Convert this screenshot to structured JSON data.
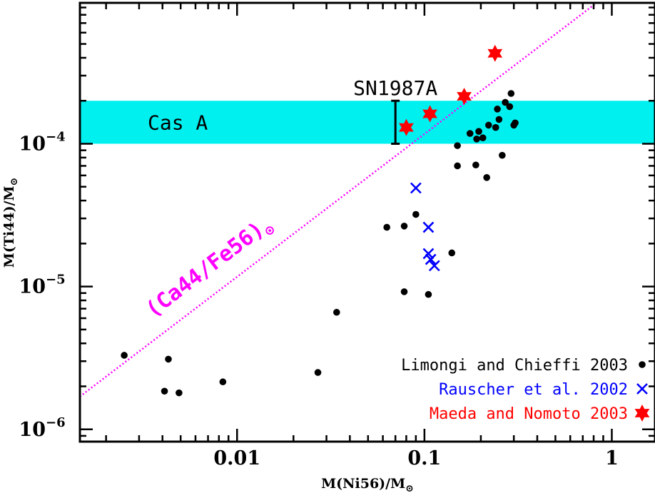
{
  "chart_data": {
    "type": "scatter",
    "title": "",
    "xlabel": "M(Ni56)/M",
    "ylabel": "M(Ti44)/M",
    "unit_symbol": "⊙",
    "xscale": "log",
    "yscale": "log",
    "xlim": [
      0.00145,
      1.7
    ],
    "ylim": [
      8.2e-07,
      0.00097
    ],
    "x_ticks": [
      {
        "value": 0.01,
        "label": "0.01"
      },
      {
        "value": 0.1,
        "label": "0.1"
      },
      {
        "value": 1,
        "label": "1"
      }
    ],
    "y_ticks": [
      {
        "value": 1e-06,
        "base": "10",
        "exp": "−6"
      },
      {
        "value": 1e-05,
        "base": "10",
        "exp": "−5"
      },
      {
        "value": 0.0001,
        "base": "10",
        "exp": "−4"
      }
    ],
    "band": {
      "label": "Cas A",
      "y_min": 0.0001,
      "y_max": 0.0002,
      "color": "#00f0f0"
    },
    "errorbar": {
      "label": "SN1987A",
      "x": 0.07,
      "y_min": 0.0001,
      "y_max": 0.0002
    },
    "solar_line": {
      "label": "(Ca44/Fe56)",
      "slope": 1,
      "intercept_y_at_x1": 0.00117,
      "color": "#ff00ff"
    },
    "legend_position": "bottom-right",
    "series": [
      {
        "name": "Limongi and Chieffi 2003",
        "marker": "circle",
        "color": "#000000",
        "points": [
          [
            0.0025,
            3.3e-06
          ],
          [
            0.0041,
            1.85e-06
          ],
          [
            0.0043,
            3.1e-06
          ],
          [
            0.0049,
            1.8e-06
          ],
          [
            0.0084,
            2.15e-06
          ],
          [
            0.027,
            2.5e-06
          ],
          [
            0.034,
            6.6e-06
          ],
          [
            0.063,
            2.6e-05
          ],
          [
            0.078,
            2.65e-05
          ],
          [
            0.078,
            9.2e-06
          ],
          [
            0.09,
            3.2e-05
          ],
          [
            0.105,
            8.8e-06
          ],
          [
            0.14,
            1.72e-05
          ],
          [
            0.15,
            9.7e-05
          ],
          [
            0.15,
            7e-05
          ],
          [
            0.175,
            0.000118
          ],
          [
            0.188,
            7.1e-05
          ],
          [
            0.19,
            0.000108
          ],
          [
            0.195,
            0.000122
          ],
          [
            0.205,
            0.00011
          ],
          [
            0.215,
            5.8e-05
          ],
          [
            0.22,
            0.000135
          ],
          [
            0.24,
            0.00013
          ],
          [
            0.245,
            0.000175
          ],
          [
            0.25,
            0.000148
          ],
          [
            0.26,
            8.3e-05
          ],
          [
            0.27,
            0.000195
          ],
          [
            0.285,
            0.000182
          ],
          [
            0.29,
            0.000225
          ],
          [
            0.3,
            0.000135
          ],
          [
            0.305,
            0.00014
          ]
        ]
      },
      {
        "name": "Rauscher et al. 2002",
        "marker": "x",
        "color": "#0000ff",
        "points": [
          [
            0.09,
            4.9e-05
          ],
          [
            0.105,
            2.6e-05
          ],
          [
            0.105,
            1.7e-05
          ],
          [
            0.108,
            1.55e-05
          ],
          [
            0.113,
            1.4e-05
          ]
        ]
      },
      {
        "name": "Maeda and Nomoto 2003",
        "marker": "star",
        "color": "#ff0000",
        "points": [
          [
            0.08,
            0.00013
          ],
          [
            0.107,
            0.000162
          ],
          [
            0.163,
            0.000215
          ],
          [
            0.238,
            0.00043
          ]
        ]
      }
    ]
  }
}
